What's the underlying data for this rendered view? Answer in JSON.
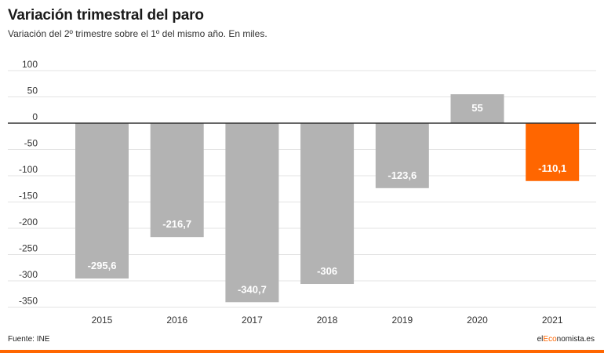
{
  "header": {
    "title": "Variación trimestral del paro",
    "subtitle": "Variación del 2º trimestre sobre el 1º del mismo año. En miles."
  },
  "footer": {
    "source": "Fuente: INE",
    "brand_prefix": "el",
    "brand_accent": "Eco",
    "brand_suffix": "nomista.es"
  },
  "colors": {
    "bar_default": "#b3b3b3",
    "bar_highlight": "#ff6600",
    "grid": "#e3e3e3",
    "zero_line": "#333333",
    "label_text": "#ffffff",
    "axis_text": "#333333"
  },
  "chart_data": {
    "type": "bar",
    "title": "Variación trimestral del paro",
    "subtitle": "Variación del 2º trimestre sobre el 1º del mismo año. En miles.",
    "categories": [
      "2015",
      "2016",
      "2017",
      "2018",
      "2019",
      "2020",
      "2021"
    ],
    "values": [
      -295.6,
      -216.7,
      -340.7,
      -306,
      -123.6,
      55,
      -110.1
    ],
    "data_labels": [
      "-295,6",
      "-216,7",
      "-340,7",
      "-306",
      "-123,6",
      "55",
      "-110,1"
    ],
    "highlight": [
      "2021"
    ],
    "yticks": [
      100,
      50,
      0,
      -50,
      -100,
      -150,
      -200,
      -250,
      -300,
      -350
    ],
    "ylim": [
      -350,
      100
    ],
    "xlabel": "",
    "ylabel": "",
    "grid": true,
    "legend": "none"
  }
}
